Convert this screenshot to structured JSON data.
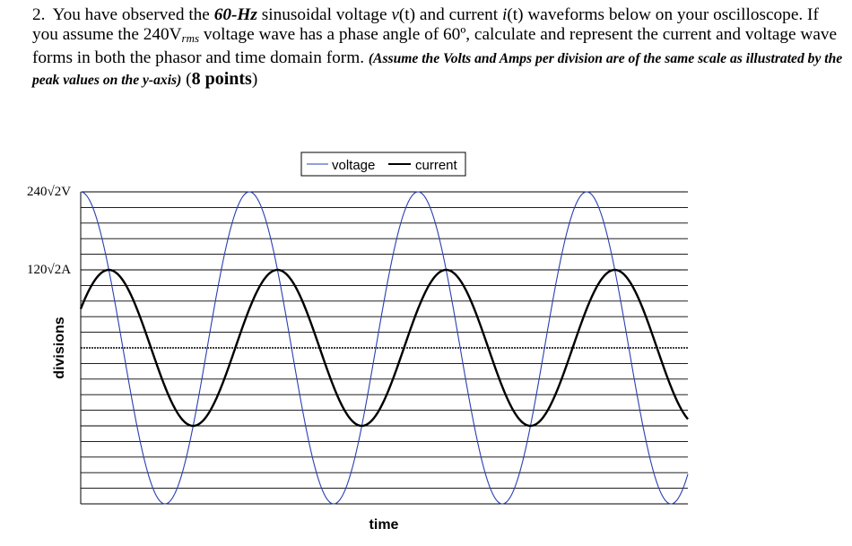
{
  "problem": {
    "number": "2.",
    "parts": [
      {
        "t": "You have observed the ",
        "s": ""
      },
      {
        "t": "60-Hz",
        "s": "bi"
      },
      {
        "t": " sinusoidal voltage ",
        "s": ""
      },
      {
        "t": "v",
        "s": "it"
      },
      {
        "t": "(t) and current ",
        "s": ""
      },
      {
        "t": "i",
        "s": "it"
      },
      {
        "t": "(t) waveforms below on your oscilloscope. If you assume the 240V",
        "s": ""
      },
      {
        "t": "rms",
        "s": "sub"
      },
      {
        "t": " voltage wave has a phase angle of 60º, calculate and represent the current and voltage wave forms in both the phasor and time domain form. ",
        "s": ""
      },
      {
        "t": "(Assume the Volts and Amps per division are of the same scale as illustrated by the peak values on the y-axis)",
        "s": "note"
      },
      {
        "t": " (",
        "s": ""
      },
      {
        "t": "8 points",
        "s": "pts"
      },
      {
        "t": ")",
        "s": ""
      }
    ]
  },
  "chart_data": {
    "type": "line",
    "legend": [
      "voltage",
      "current"
    ],
    "legend_position": "top-center",
    "xlabel": "time",
    "ylabel": "divisions",
    "y_tick_labels": [
      "240√2V",
      "120√2A"
    ],
    "grid": true,
    "frequency_hz": 60,
    "x_range_periods": [
      0,
      3.6
    ],
    "divisions_half_range": 10,
    "series": [
      {
        "name": "voltage",
        "color": "#2a3fb0",
        "amplitude_div": 10,
        "phase_deg": 90,
        "formula": "10*cos(360*t)"
      },
      {
        "name": "current",
        "color": "#000000",
        "amplitude_div": 5,
        "phase_deg": 30,
        "formula": "5*sin(360*t + 30)"
      }
    ]
  }
}
